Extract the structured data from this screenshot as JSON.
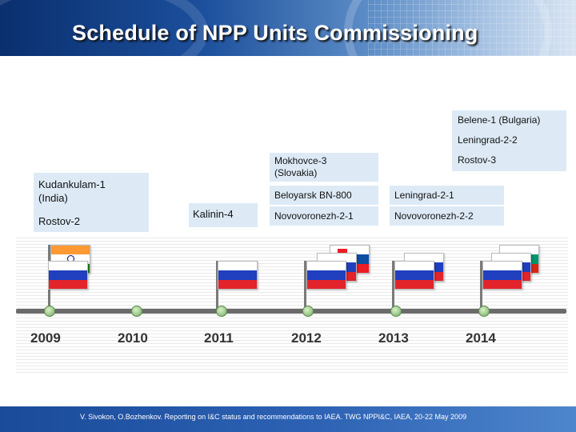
{
  "slide": {
    "title": "Schedule of NPP Units Commissioning",
    "footer": "V. Sivokon, O.Bozhenkov. Reporting on I&C status and recommendations to IAEA. TWG NPPI&C, IAEA, 20-22 May 2009"
  },
  "timeline": {
    "years": [
      "2009",
      "2010",
      "2011",
      "2012",
      "2013",
      "2014"
    ]
  },
  "units": {
    "y2009": [
      "Kudankulam-1 (India)",
      "Rostov-2"
    ],
    "y2011": [
      "Kalinin-4"
    ],
    "y2012": [
      "Mokhovce-3 (Slovakia)",
      "Beloyarsk BN-800",
      "Novovoronezh-2-1"
    ],
    "y2013": [
      "Leningrad-2-1",
      "Novovoronezh-2-2"
    ],
    "y2014": [
      "Belene-1 (Bulgaria)",
      "Leningrad-2-2",
      "Rostov-3"
    ]
  },
  "flags": {
    "russia": "russia-flag-icon",
    "india": "india-flag-icon",
    "slovakia": "slovakia-flag-icon",
    "bulgaria": "bulgaria-flag-icon"
  },
  "colors": {
    "header": "#1c4f9c",
    "label_box": "#ddeaf6",
    "timeline_axis": "#6b6b6b",
    "tick": "#9cc98a"
  }
}
